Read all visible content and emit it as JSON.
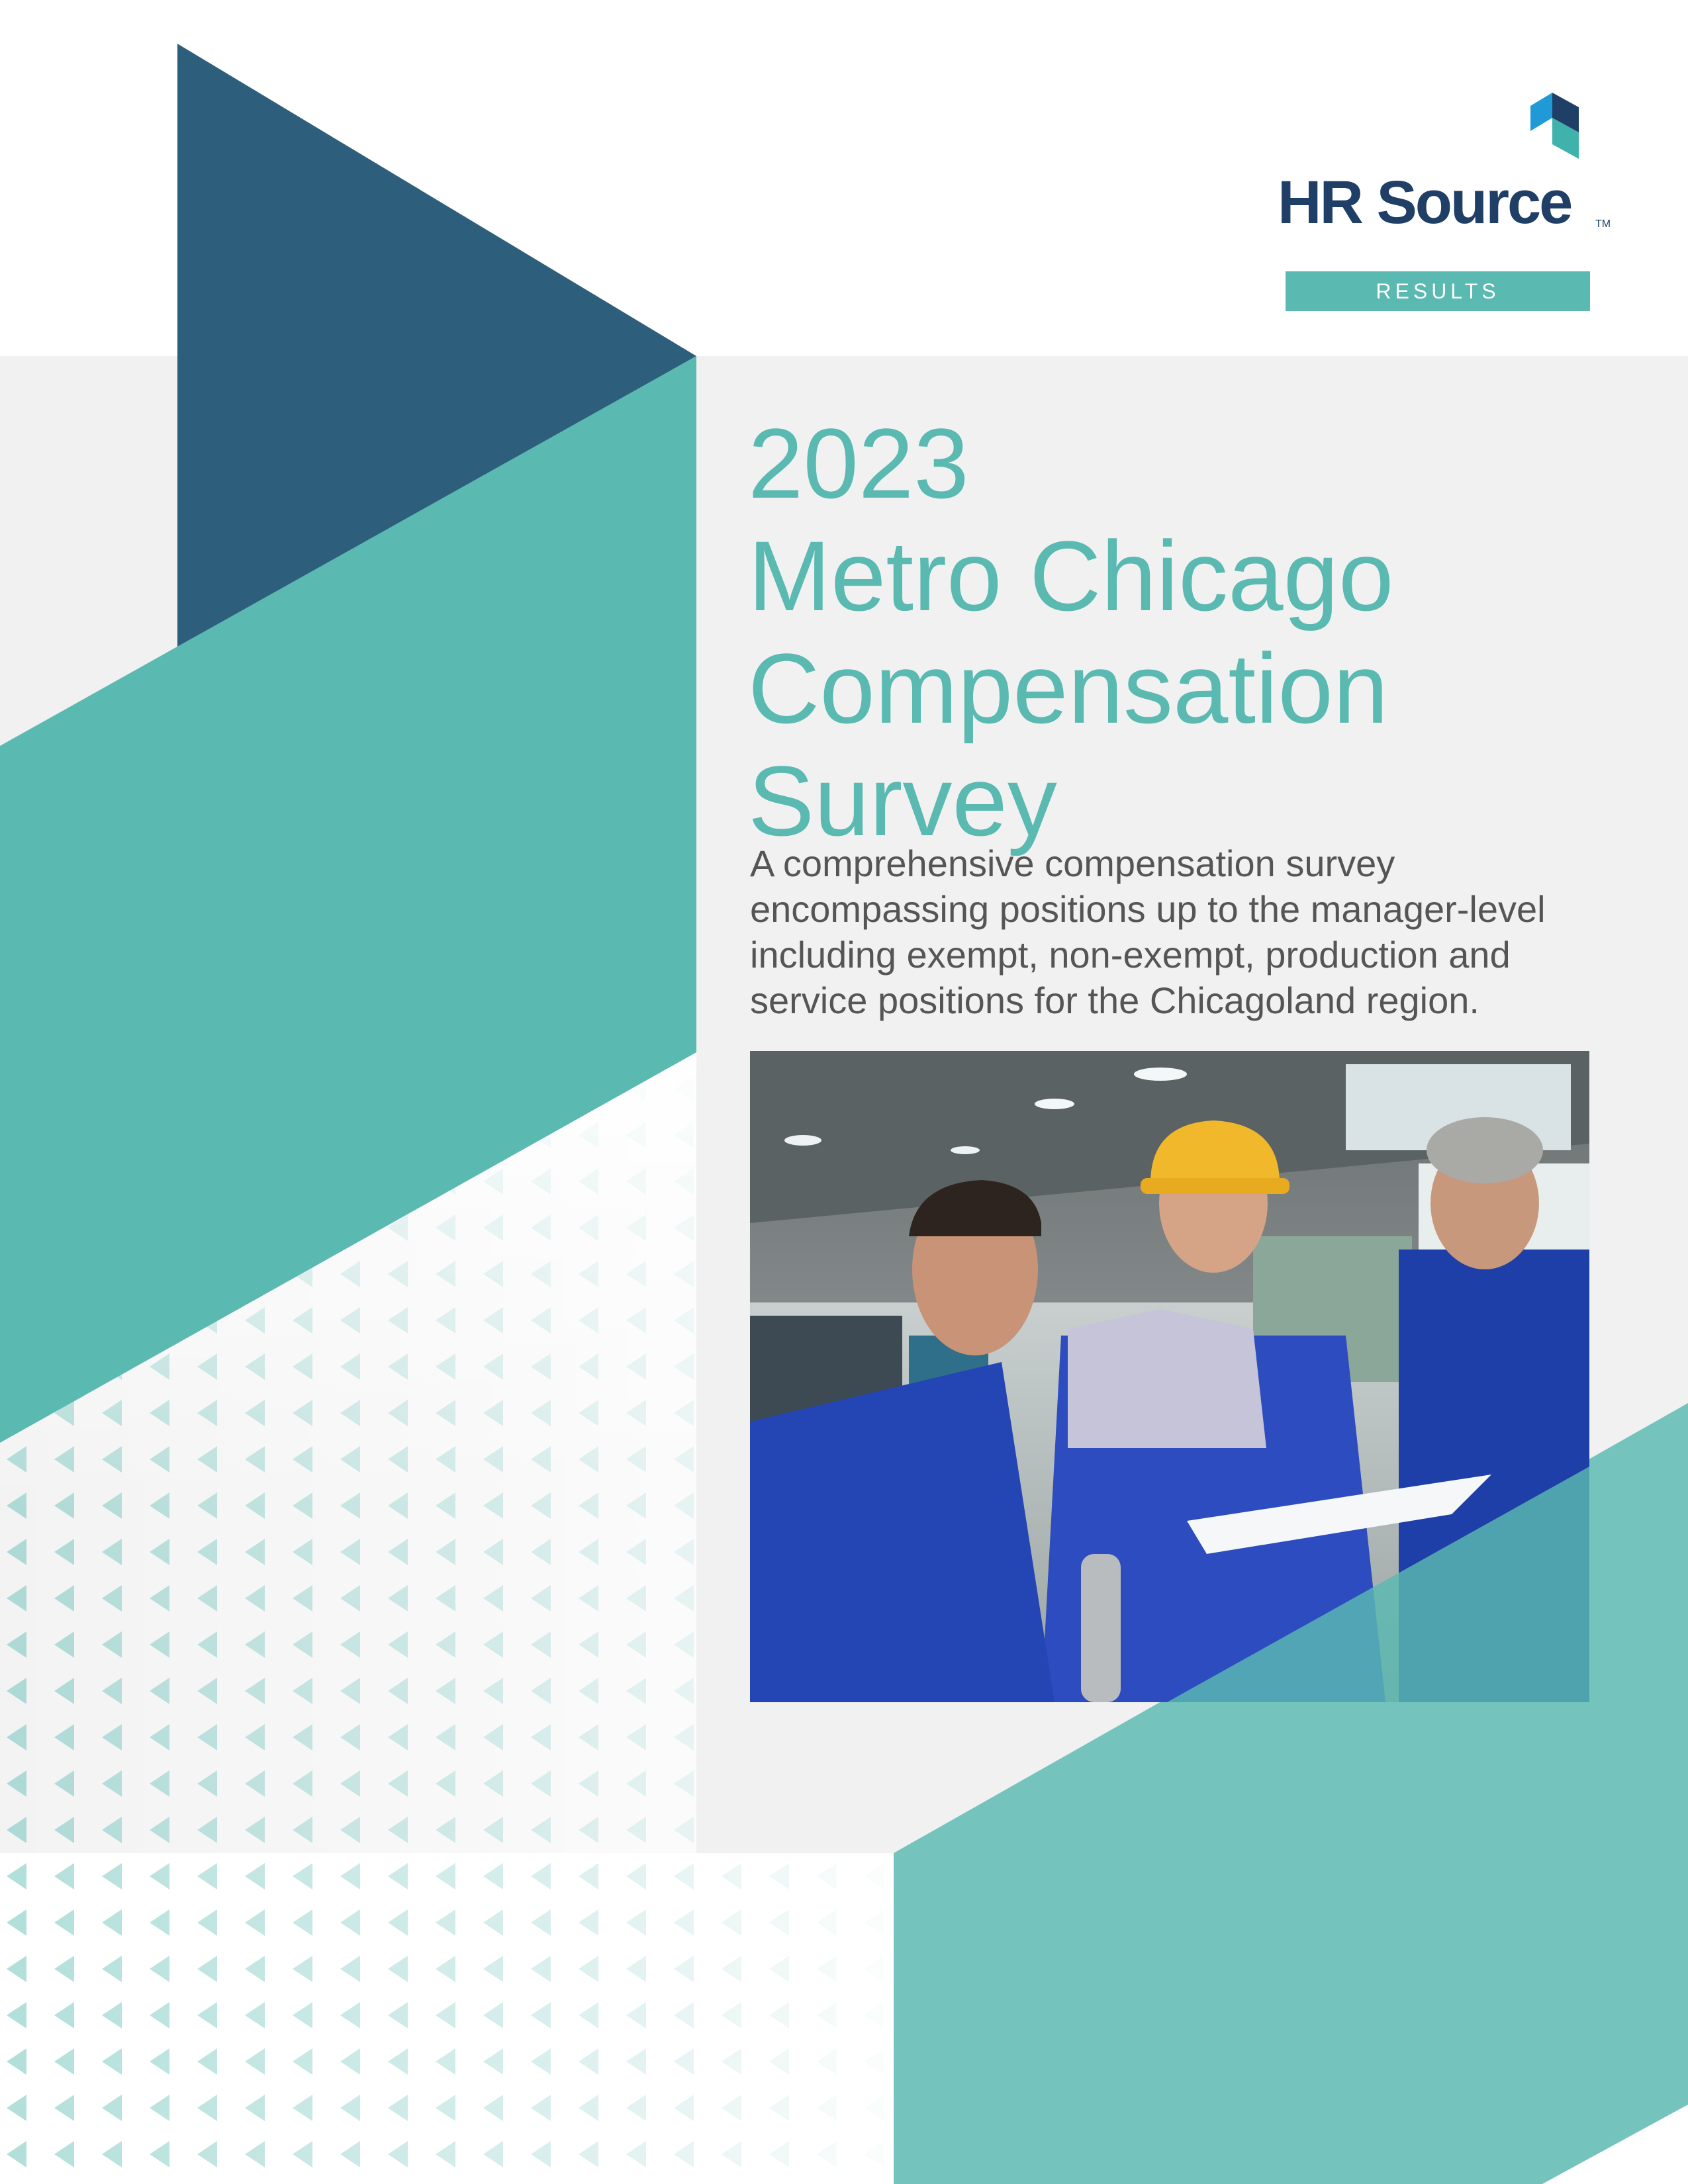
{
  "colors": {
    "navy": "#2d5e7c",
    "teal": "#5ab9b1",
    "teal_light": "#74c4bd",
    "panel_gray": "#f1f1f1",
    "logo_navy": "#1f3f66",
    "logo_blue": "#1f9ad6",
    "logo_teal": "#3fb3ab"
  },
  "brand": {
    "name": "HR Source",
    "trademark": "TM",
    "logo_icon": "hr-source-cube-icon"
  },
  "badge": {
    "label": "RESULTS"
  },
  "title": {
    "line1": "2023",
    "line2": "Metro Chicago",
    "line3": "Compensation",
    "line4": "Survey"
  },
  "subtitle": "A comprehensive compensation survey encompassing positions up to the manager-level including exempt, non-exempt, production and service positions for the Chicagoland region.",
  "photo": {
    "content": "three-workers-in-factory-photo"
  }
}
